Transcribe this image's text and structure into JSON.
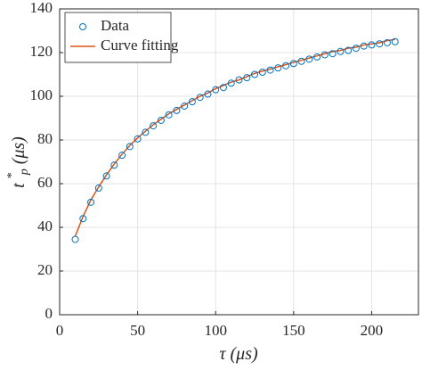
{
  "chart_data": {
    "type": "scatter+line",
    "x_label": {
      "symbol": "τ",
      "unit": "(μs)"
    },
    "y_label": {
      "base": "t",
      "sup": "*",
      "sub": "p",
      "unit": "(μs)"
    },
    "xlim": [
      0,
      230
    ],
    "xticks": [
      0,
      50,
      100,
      150,
      200
    ],
    "ylim": [
      0,
      140
    ],
    "yticks": [
      0,
      20,
      40,
      60,
      80,
      100,
      120,
      140
    ],
    "grid": true,
    "legend": "upper-left",
    "series": [
      {
        "name": "Data",
        "kind": "scatter",
        "color": "#0072BD",
        "x": [
          10,
          15,
          20,
          25,
          30,
          35,
          40,
          45,
          50,
          55,
          60,
          65,
          70,
          75,
          80,
          85,
          90,
          95,
          100,
          105,
          110,
          115,
          120,
          125,
          130,
          135,
          140,
          145,
          150,
          155,
          160,
          165,
          170,
          175,
          180,
          185,
          190,
          195,
          200,
          205,
          210,
          215
        ],
        "values": [
          34.5,
          44,
          51.5,
          58,
          63.5,
          68.5,
          73,
          77,
          80.5,
          83.5,
          86.5,
          89,
          91.5,
          93.5,
          95.5,
          97.5,
          99.5,
          101,
          103,
          104,
          106,
          107.5,
          108.5,
          110,
          111,
          112,
          113,
          114,
          115,
          116,
          117,
          118,
          119,
          119.5,
          120.5,
          121,
          122,
          123,
          123.5,
          124,
          124.5,
          125
        ]
      },
      {
        "name": "Curve fitting",
        "kind": "line",
        "color": "#D95319",
        "x": [
          10,
          15,
          20,
          25,
          30,
          35,
          40,
          45,
          50,
          55,
          60,
          65,
          70,
          75,
          80,
          85,
          90,
          95,
          100,
          105,
          110,
          115,
          120,
          125,
          130,
          135,
          140,
          145,
          150,
          155,
          160,
          165,
          170,
          175,
          180,
          185,
          190,
          195,
          200,
          205,
          210,
          215
        ],
        "values": [
          36,
          45,
          52.5,
          58.5,
          64,
          69,
          73.5,
          77.5,
          81,
          84,
          87,
          89.5,
          92,
          94,
          96,
          98,
          100,
          101.5,
          103.5,
          105,
          106.5,
          107.5,
          109,
          110.5,
          111.5,
          112.5,
          113.5,
          114.5,
          115.5,
          116.5,
          117.5,
          118.5,
          119.5,
          120.5,
          121,
          122,
          122.5,
          123.5,
          124,
          124.5,
          125.5,
          126
        ]
      }
    ]
  }
}
